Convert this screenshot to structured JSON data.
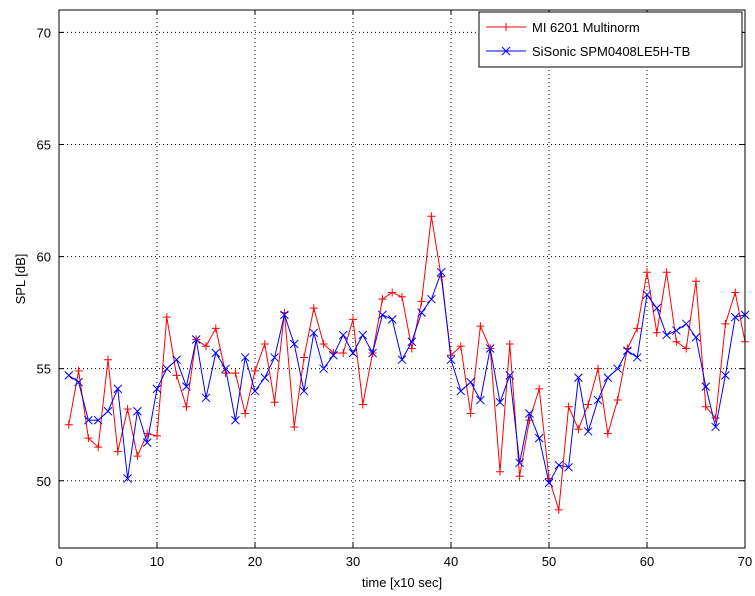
{
  "chart_data": {
    "type": "line",
    "title": "",
    "xlabel": "time [x10 sec]",
    "ylabel": "SPL [dB]",
    "xlim": [
      0,
      70
    ],
    "ylim": [
      47,
      71
    ],
    "xticks": [
      0,
      10,
      20,
      30,
      40,
      50,
      60,
      70
    ],
    "yticks": [
      50,
      55,
      60,
      65,
      70
    ],
    "grid": true,
    "legend_position": "top-right",
    "x": [
      1,
      2,
      3,
      4,
      5,
      6,
      7,
      8,
      9,
      10,
      11,
      12,
      13,
      14,
      15,
      16,
      17,
      18,
      19,
      20,
      21,
      22,
      23,
      24,
      25,
      26,
      27,
      28,
      29,
      30,
      31,
      32,
      33,
      34,
      35,
      36,
      37,
      38,
      39,
      40,
      41,
      42,
      43,
      44,
      45,
      46,
      47,
      48,
      49,
      50,
      51,
      52,
      53,
      54,
      55,
      56,
      57,
      58,
      59,
      60,
      61,
      62,
      63,
      64,
      65,
      66,
      67,
      68,
      69,
      70
    ],
    "series": [
      {
        "name": "MI 6201 Multinorm",
        "color": "#ff0000",
        "marker": "plus",
        "values": [
          52.5,
          54.9,
          51.9,
          51.5,
          55.4,
          51.3,
          53.2,
          51.1,
          52.1,
          52.0,
          57.3,
          54.7,
          53.3,
          56.3,
          56.0,
          56.8,
          54.8,
          54.8,
          53.0,
          54.9,
          56.1,
          53.5,
          57.5,
          52.4,
          55.5,
          57.7,
          56.1,
          55.7,
          55.7,
          57.2,
          53.4,
          55.7,
          58.1,
          58.4,
          58.2,
          55.9,
          58.0,
          61.8,
          59.1,
          55.6,
          56.0,
          53.0,
          56.9,
          55.9,
          50.4,
          56.1,
          50.2,
          52.7,
          54.1,
          50.1,
          48.7,
          53.3,
          52.3,
          53.4,
          55.0,
          52.1,
          53.6,
          55.9,
          56.8,
          59.3,
          56.6,
          59.3,
          56.2,
          55.9,
          58.9,
          53.3,
          52.8,
          57.0,
          58.4,
          56.2
        ]
      },
      {
        "name": "SiSonic SPM0408LE5H-TB",
        "color": "#0000ff",
        "marker": "x",
        "values": [
          54.7,
          54.4,
          52.7,
          52.7,
          53.1,
          54.1,
          50.1,
          53.1,
          51.7,
          54.1,
          55.0,
          55.4,
          54.2,
          56.3,
          53.7,
          55.7,
          55.0,
          52.7,
          55.5,
          54.0,
          54.6,
          55.5,
          57.4,
          56.1,
          54.0,
          56.6,
          55.0,
          55.6,
          56.5,
          55.7,
          56.5,
          55.7,
          57.4,
          57.2,
          55.4,
          56.2,
          57.5,
          58.1,
          59.3,
          55.4,
          54.0,
          54.4,
          53.6,
          55.9,
          53.5,
          54.7,
          50.8,
          53.0,
          51.9,
          49.9,
          50.7,
          50.6,
          54.6,
          52.2,
          53.6,
          54.6,
          55.0,
          55.8,
          55.5,
          58.3,
          57.7,
          56.5,
          56.7,
          57.0,
          56.4,
          54.2,
          52.4,
          54.7,
          57.3,
          57.4
        ]
      }
    ]
  }
}
